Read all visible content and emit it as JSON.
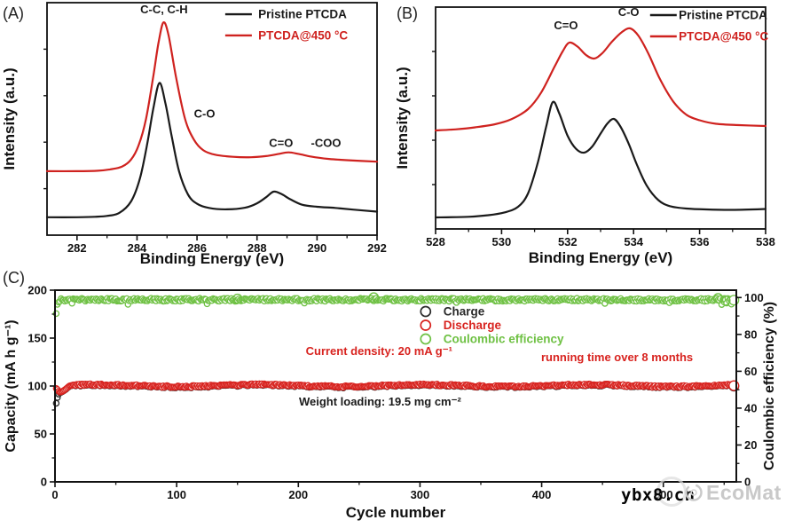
{
  "watermark": {
    "text": "ybx8.cn",
    "brand": "EcoMat",
    "url_color": "#050505",
    "brand_color": "#c9c9c9"
  },
  "chart_data": {
    "a": {
      "panel_label": "(A)",
      "type": "line",
      "xlabel": "Binding Energy (eV)",
      "ylabel": "Intensity (a.u.)",
      "x_range": [
        281,
        292
      ],
      "x_major_ticks": [
        282,
        284,
        286,
        288,
        290,
        292
      ],
      "x_minor_ticks": [
        283,
        285,
        287,
        289,
        291
      ],
      "grid": false,
      "legend": {
        "fx_line": 0.54,
        "line_len": 30,
        "fx_text": 0.64,
        "fy": [
          0.05,
          0.141
        ],
        "items": [
          {
            "label": "Pristine PTCDA",
            "color": "#1a1a1a"
          },
          {
            "label": "PTCDA@450 °C",
            "color": "#cf221f"
          }
        ]
      },
      "annotations": [
        {
          "text": "C-C, C-H",
          "x": 284.9,
          "fy": 0.046,
          "anchor": "middle",
          "color": "#1a1a1a"
        },
        {
          "text": "C-O",
          "x": 286.25,
          "fy": 0.495,
          "anchor": "middle",
          "color": "#1a1a1a"
        },
        {
          "text": "C=O",
          "x": 288.8,
          "fy": 0.62,
          "anchor": "middle",
          "color": "#1a1a1a"
        },
        {
          "text": "-COO",
          "x": 290.3,
          "fy": 0.62,
          "anchor": "middle",
          "color": "#1a1a1a"
        }
      ],
      "series": [
        {
          "name": "Pristine PTCDA",
          "color": "#1a1a1a",
          "points": [
            [
              281,
              0.077
            ],
            [
              282,
              0.077
            ],
            [
              282.6,
              0.079
            ],
            [
              283,
              0.083
            ],
            [
              283.4,
              0.095
            ],
            [
              283.8,
              0.145
            ],
            [
              284.1,
              0.245
            ],
            [
              284.35,
              0.4
            ],
            [
              284.55,
              0.55
            ],
            [
              284.75,
              0.655
            ],
            [
              284.95,
              0.565
            ],
            [
              285.15,
              0.43
            ],
            [
              285.4,
              0.275
            ],
            [
              285.7,
              0.175
            ],
            [
              286,
              0.135
            ],
            [
              286.4,
              0.117
            ],
            [
              287,
              0.111
            ],
            [
              287.6,
              0.118
            ],
            [
              288,
              0.137
            ],
            [
              288.3,
              0.163
            ],
            [
              288.55,
              0.187
            ],
            [
              288.8,
              0.178
            ],
            [
              289.1,
              0.155
            ],
            [
              289.5,
              0.131
            ],
            [
              290,
              0.122
            ],
            [
              290.6,
              0.117
            ],
            [
              291.2,
              0.11
            ],
            [
              292,
              0.101
            ]
          ]
        },
        {
          "name": "PTCDA@450 °C",
          "color": "#cf221f",
          "points": [
            [
              281,
              0.275
            ],
            [
              282,
              0.275
            ],
            [
              282.7,
              0.277
            ],
            [
              283.1,
              0.283
            ],
            [
              283.5,
              0.295
            ],
            [
              283.8,
              0.325
            ],
            [
              284.05,
              0.385
            ],
            [
              284.3,
              0.5
            ],
            [
              284.55,
              0.69
            ],
            [
              284.72,
              0.83
            ],
            [
              284.88,
              0.915
            ],
            [
              285.05,
              0.86
            ],
            [
              285.3,
              0.68
            ],
            [
              285.6,
              0.5
            ],
            [
              285.9,
              0.41
            ],
            [
              286.2,
              0.366
            ],
            [
              286.6,
              0.346
            ],
            [
              287.2,
              0.337
            ],
            [
              287.8,
              0.335
            ],
            [
              288.3,
              0.34
            ],
            [
              288.7,
              0.349
            ],
            [
              289.05,
              0.356
            ],
            [
              289.4,
              0.349
            ],
            [
              289.8,
              0.338
            ],
            [
              290.4,
              0.328
            ],
            [
              291.2,
              0.321
            ],
            [
              292,
              0.316
            ]
          ]
        }
      ]
    },
    "b": {
      "panel_label": "(B)",
      "type": "line",
      "xlabel": "Binding Energy (eV)",
      "ylabel": "Intensity (a.u.)",
      "x_range": [
        528,
        538
      ],
      "x_major_ticks": [
        528,
        530,
        532,
        534,
        536,
        538
      ],
      "x_minor_ticks": [
        529,
        531,
        533,
        535,
        537
      ],
      "grid": false,
      "legend": {
        "fx_line": 0.65,
        "line_len": 30,
        "fx_text": 0.737,
        "fy": [
          0.036,
          0.132
        ],
        "items": [
          {
            "label": "Pristine PTCDA",
            "color": "#1a1a1a"
          },
          {
            "label": "PTCDA@450 °C",
            "color": "#cf221f"
          }
        ]
      },
      "annotations": [
        {
          "text": "C=O",
          "x": 531.95,
          "fy": 0.1,
          "anchor": "middle",
          "color": "#1a1a1a"
        },
        {
          "text": "C-O",
          "x": 533.85,
          "fy": 0.04,
          "anchor": "middle",
          "color": "#1a1a1a"
        }
      ],
      "series": [
        {
          "name": "Pristine PTCDA",
          "color": "#1a1a1a",
          "points": [
            [
              528,
              0.052
            ],
            [
              529,
              0.055
            ],
            [
              529.6,
              0.062
            ],
            [
              530.1,
              0.075
            ],
            [
              530.5,
              0.1
            ],
            [
              530.8,
              0.16
            ],
            [
              531.1,
              0.3
            ],
            [
              531.35,
              0.46
            ],
            [
              531.55,
              0.572
            ],
            [
              531.75,
              0.52
            ],
            [
              532.0,
              0.42
            ],
            [
              532.25,
              0.362
            ],
            [
              532.5,
              0.344
            ],
            [
              532.75,
              0.372
            ],
            [
              533.0,
              0.43
            ],
            [
              533.2,
              0.474
            ],
            [
              533.4,
              0.496
            ],
            [
              533.6,
              0.462
            ],
            [
              533.85,
              0.385
            ],
            [
              534.1,
              0.29
            ],
            [
              534.4,
              0.195
            ],
            [
              534.75,
              0.13
            ],
            [
              535.1,
              0.103
            ],
            [
              535.6,
              0.092
            ],
            [
              536.2,
              0.088
            ],
            [
              537,
              0.086
            ],
            [
              538,
              0.09
            ]
          ]
        },
        {
          "name": "PTCDA@450 °C",
          "color": "#cf221f",
          "points": [
            [
              528,
              0.444
            ],
            [
              528.6,
              0.449
            ],
            [
              529.2,
              0.458
            ],
            [
              529.8,
              0.472
            ],
            [
              530.3,
              0.495
            ],
            [
              530.8,
              0.54
            ],
            [
              531.2,
              0.615
            ],
            [
              531.6,
              0.73
            ],
            [
              531.85,
              0.8
            ],
            [
              532.05,
              0.84
            ],
            [
              532.3,
              0.822
            ],
            [
              532.55,
              0.785
            ],
            [
              532.8,
              0.768
            ],
            [
              533.05,
              0.792
            ],
            [
              533.35,
              0.845
            ],
            [
              533.65,
              0.888
            ],
            [
              533.9,
              0.904
            ],
            [
              534.15,
              0.87
            ],
            [
              534.45,
              0.79
            ],
            [
              534.8,
              0.675
            ],
            [
              535.2,
              0.575
            ],
            [
              535.6,
              0.515
            ],
            [
              536,
              0.49
            ],
            [
              536.5,
              0.474
            ],
            [
              537.2,
              0.468
            ],
            [
              538,
              0.464
            ]
          ]
        }
      ]
    },
    "c": {
      "panel_label": "(C)",
      "type": "scatter",
      "xlabel": "Cycle number",
      "ylabel_left": "Capacity (mA h g⁻¹)",
      "ylabel_right": "Coulombic efficiency (%)",
      "x_range": [
        0,
        560
      ],
      "x_major_ticks": [
        0,
        100,
        200,
        300,
        400,
        500
      ],
      "x_minor_ticks": [
        50,
        150,
        250,
        350,
        450,
        550
      ],
      "y_left_range": [
        0,
        200
      ],
      "y_left_major": [
        0,
        50,
        100,
        150,
        200
      ],
      "y_left_minor": [
        25,
        75,
        125,
        175
      ],
      "y_right_range": [
        0,
        104
      ],
      "y_right_major": [
        0,
        20,
        40,
        60,
        80,
        100
      ],
      "y_right_minor": [
        10,
        30,
        50,
        70,
        90
      ],
      "grid": false,
      "legend": {
        "fx_marker": 0.544,
        "fx_text": 0.57,
        "fy": [
          0.111,
          0.183,
          0.2546
        ],
        "items": [
          {
            "label": "Charge",
            "color": "#2b2b2b"
          },
          {
            "label": "Discharge",
            "color": "#d8231f"
          },
          {
            "label": "Coulombic efficiency",
            "color": "#6fc144"
          }
        ]
      },
      "annotations": [
        {
          "text": "Current density: 20 mA g⁻¹",
          "fx": 0.368,
          "fy": 0.338,
          "anchor": "start",
          "color": "#d8231f"
        },
        {
          "text": "running time over 8 months",
          "fx": 0.7135,
          "fy": 0.37,
          "anchor": "start",
          "color": "#d8231f"
        },
        {
          "text": "Weight loading: 19.5 mg cm⁻²",
          "fx": 0.358,
          "fy": 0.602,
          "anchor": "start",
          "color": "#1a1a1a"
        }
      ],
      "scatter": {
        "cycles": 558,
        "seed": 987654321,
        "marker_radius": 3.1,
        "end_marker_radius": 5.4,
        "charge": {
          "name": "Charge",
          "color": "#2b2b2b",
          "offset": -0.35,
          "start": [
            [
              1,
              82
            ],
            [
              2,
              88
            ],
            [
              3,
              91.5
            ],
            [
              4,
              93
            ]
          ]
        },
        "discharge": {
          "name": "Discharge",
          "color": "#d8231f",
          "base": 100.4,
          "noise": 1.0,
          "wave_amp": 1.0,
          "wave_period": 135,
          "start": [
            [
              1,
              97.5
            ],
            [
              2,
              96.4
            ],
            [
              3,
              94.6
            ],
            [
              4,
              93.6
            ],
            [
              5,
              93.9
            ],
            [
              6,
              94.4
            ],
            [
              7,
              95.1
            ],
            [
              8,
              96
            ],
            [
              9,
              97
            ],
            [
              10,
              98
            ],
            [
              11,
              99.2
            ],
            [
              12,
              100.1
            ]
          ]
        },
        "efficiency": {
          "name": "Coulombic efficiency",
          "color": "#6fc144",
          "base": 98.8,
          "noise": 0.8,
          "start": [
            [
              1,
              91.3
            ],
            [
              2,
              96.3
            ],
            [
              3,
              97.5
            ],
            [
              4,
              98.0
            ]
          ],
          "outliers": [
            [
              14,
              96.9
            ],
            [
              60,
              96.3
            ],
            [
              125,
              96.6
            ],
            [
              205,
              97.0
            ],
            [
              330,
              97.3
            ],
            [
              452,
              96.8
            ],
            [
              505,
              97.2
            ],
            [
              548,
              96.2
            ],
            [
              552,
              97.0
            ],
            [
              556,
              96.4
            ]
          ],
          "big_rings": [
            [
              150,
              99.3
            ],
            [
              262,
              100.0
            ],
            [
              545,
              99.6
            ],
            [
              551,
              98.4
            ]
          ]
        }
      }
    }
  },
  "layout_text": {
    "note": "scientific figure, three panels"
  }
}
